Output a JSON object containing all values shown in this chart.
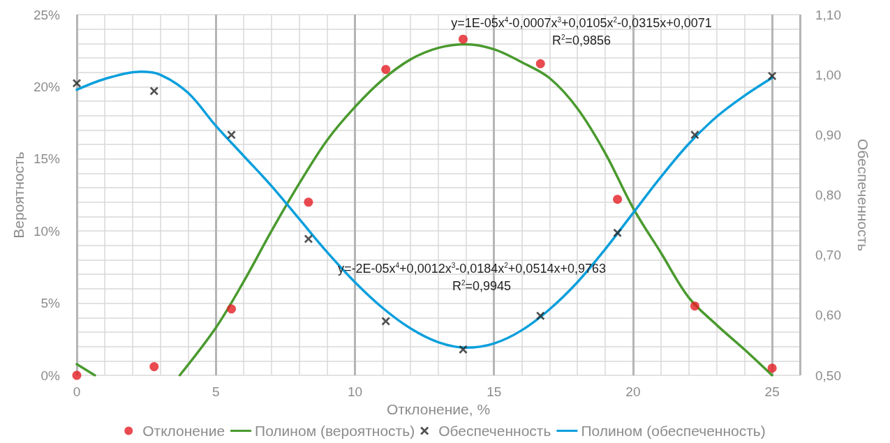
{
  "chart_data": {
    "type": "scatter",
    "xlabel": "Отклонение, %",
    "ylabel": "Вероятность",
    "y2label": "Обеспеченность",
    "x": [
      0,
      2.78,
      5.56,
      8.33,
      11.11,
      13.89,
      16.67,
      19.44,
      22.22,
      25
    ],
    "series": [
      {
        "name": "Отклонение",
        "marker": "circle",
        "color": "#e31e24",
        "values": [
          0,
          0.6,
          4.6,
          12.0,
          21.2,
          23.3,
          21.6,
          12.2,
          4.8,
          0.5
        ]
      },
      {
        "name": "Полином (вероятность)",
        "type": "line",
        "marker": "none",
        "color": "#4a9a2e",
        "x": [
          0,
          0.65,
          2,
          3.7,
          5,
          6,
          7,
          8,
          9,
          10,
          11,
          12,
          13,
          14,
          15,
          16,
          17,
          18,
          19,
          20,
          21,
          22,
          23,
          24,
          25
        ],
        "values": [
          0.77,
          0,
          null,
          0,
          3.3,
          6.5,
          10,
          13.3,
          16.3,
          18.6,
          20.5,
          21.9,
          22.7,
          22.95,
          22.6,
          21.7,
          20.6,
          18.5,
          15.4,
          11.6,
          8.5,
          5.4,
          3.5,
          1.8,
          0
        ]
      },
      {
        "name": "Обеспеченность",
        "marker": "cross",
        "color": "#262626",
        "axis": "y2",
        "values": [
          0.986,
          0.973,
          0.9,
          0.727,
          0.59,
          0.543,
          0.599,
          0.737,
          0.9,
          0.998
        ]
      },
      {
        "name": "Полином (обеспеченность)",
        "type": "line",
        "marker": "none",
        "color": "#0a9fdc",
        "axis": "y2",
        "x": [
          0,
          1,
          2.3,
          3,
          4,
          5,
          6,
          7,
          8,
          9,
          10,
          11,
          12,
          13,
          14,
          15,
          16,
          17,
          18,
          19,
          20,
          21,
          22,
          23,
          24,
          25
        ],
        "values": [
          0.975,
          0.993,
          1.005,
          1.0,
          0.97,
          0.915,
          0.865,
          0.815,
          0.76,
          0.705,
          0.655,
          0.612,
          0.578,
          0.555,
          0.546,
          0.553,
          0.575,
          0.61,
          0.655,
          0.71,
          0.77,
          0.83,
          0.885,
          0.93,
          0.965,
          0.995
        ]
      }
    ],
    "xlim": [
      0,
      26
    ],
    "xticks": [
      0,
      5,
      10,
      15,
      20,
      25
    ],
    "ylim": [
      0,
      25
    ],
    "yticks": [
      {
        "value": 0,
        "label": "0%"
      },
      {
        "value": 5,
        "label": "5%"
      },
      {
        "value": 10,
        "label": "10%"
      },
      {
        "value": 15,
        "label": "15%"
      },
      {
        "value": 20,
        "label": "20%"
      },
      {
        "value": 25,
        "label": "25%"
      }
    ],
    "y2lim": [
      0.5,
      1.1
    ],
    "y2ticks": [
      {
        "value": 0.5,
        "label": "0,50"
      },
      {
        "value": 0.6,
        "label": "0,60"
      },
      {
        "value": 0.7,
        "label": "0,70"
      },
      {
        "value": 0.8,
        "label": "0,80"
      },
      {
        "value": 0.9,
        "label": "0,90"
      },
      {
        "value": 1.0,
        "label": "1,00"
      },
      {
        "value": 1.1,
        "label": "1,10"
      }
    ],
    "grid": true,
    "legend": "bottom",
    "annotations": [
      "y=1E-05x$^{4}$-0,0007x$^{3}$+0,0105x$^{2}$-0,0315x+0,0071",
      "R$^{2}$=0,9856",
      "y=-2E-05x$^{4}$+0,0012x$^{3}$-0,0184x$^{2}$+0,0514x+0,9763",
      "R$^{2}$=0,9945"
    ]
  }
}
